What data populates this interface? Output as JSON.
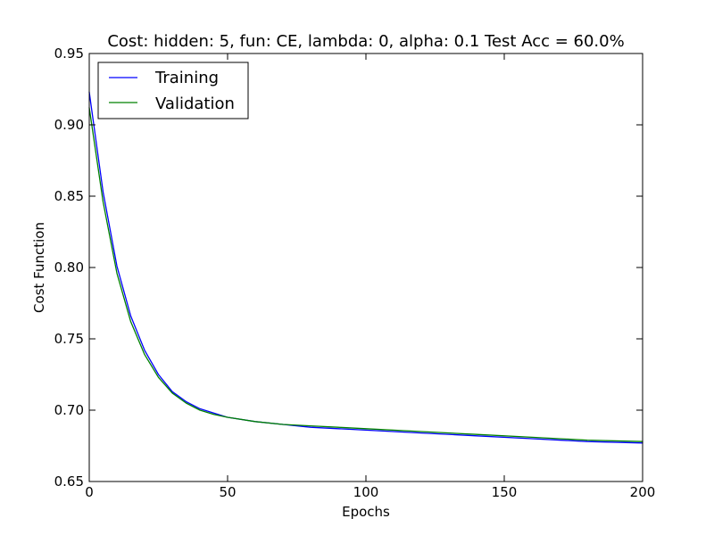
{
  "chart_data": {
    "type": "line",
    "title": "Cost: hidden: 5, fun: CE, lambda: 0, alpha: 0.1  Test Acc = 60.0%",
    "xlabel": "Epochs",
    "ylabel": "Cost Function",
    "xlim": [
      0,
      200
    ],
    "ylim": [
      0.65,
      0.95
    ],
    "xticks": [
      0,
      50,
      100,
      150,
      200
    ],
    "xtick_labels": [
      "0",
      "50",
      "100",
      "150",
      "200"
    ],
    "yticks": [
      0.65,
      0.7,
      0.75,
      0.8,
      0.85,
      0.9,
      0.95
    ],
    "ytick_labels": [
      "0.65",
      "0.70",
      "0.75",
      "0.80",
      "0.85",
      "0.90",
      "0.95"
    ],
    "grid": false,
    "legend_position": "top-left",
    "series": [
      {
        "name": "Training",
        "color": "#0000ff",
        "x": [
          0,
          5,
          10,
          15,
          20,
          25,
          30,
          35,
          40,
          45,
          50,
          60,
          70,
          80,
          90,
          100,
          120,
          140,
          160,
          180,
          200
        ],
        "values": [
          0.923,
          0.853,
          0.801,
          0.766,
          0.742,
          0.725,
          0.713,
          0.706,
          0.701,
          0.698,
          0.695,
          0.692,
          0.69,
          0.688,
          0.687,
          0.686,
          0.684,
          0.682,
          0.68,
          0.678,
          0.677
        ]
      },
      {
        "name": "Validation",
        "color": "#008000",
        "x": [
          0,
          5,
          10,
          15,
          20,
          25,
          30,
          35,
          40,
          45,
          50,
          60,
          70,
          80,
          90,
          100,
          120,
          140,
          160,
          180,
          200
        ],
        "values": [
          0.912,
          0.846,
          0.796,
          0.762,
          0.739,
          0.723,
          0.712,
          0.705,
          0.7,
          0.697,
          0.695,
          0.692,
          0.69,
          0.689,
          0.688,
          0.687,
          0.685,
          0.683,
          0.681,
          0.679,
          0.678
        ]
      }
    ]
  }
}
